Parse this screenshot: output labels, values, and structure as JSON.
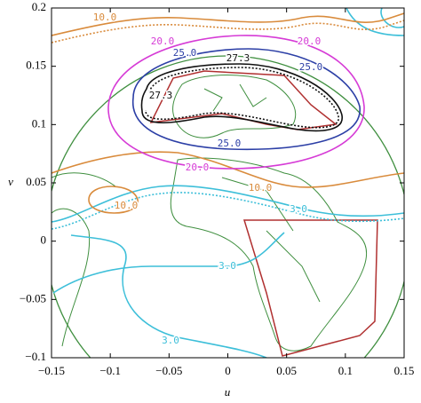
{
  "chart_data": {
    "type": "contour",
    "xlabel": "u",
    "ylabel": "v",
    "xlim": [
      -0.15,
      0.15
    ],
    "ylim": [
      -0.1,
      0.2
    ],
    "xticks": [
      {
        "value": -0.15,
        "label": "−0.15"
      },
      {
        "value": -0.1,
        "label": "−0.1"
      },
      {
        "value": -0.05,
        "label": "−0.05"
      },
      0,
      0.05,
      0.1,
      0.15
    ],
    "yticks": [
      {
        "value": -0.1,
        "label": "−0.1"
      },
      {
        "value": -0.05,
        "label": "−0.05"
      },
      0,
      0.05,
      0.1,
      0.15,
      0.2
    ],
    "contours": [
      {
        "level": 3,
        "label": "3.0",
        "color": "#3dbfd9"
      },
      {
        "level": 10,
        "label": "10.0",
        "color": "#d98b3c"
      },
      {
        "level": 20,
        "label": "20.0",
        "color": "#d63bd6"
      },
      {
        "level": 25,
        "label": "25.0",
        "color": "#2c3fa6"
      },
      {
        "level": 27.3,
        "label": "27.3",
        "color": "#111111"
      }
    ]
  }
}
